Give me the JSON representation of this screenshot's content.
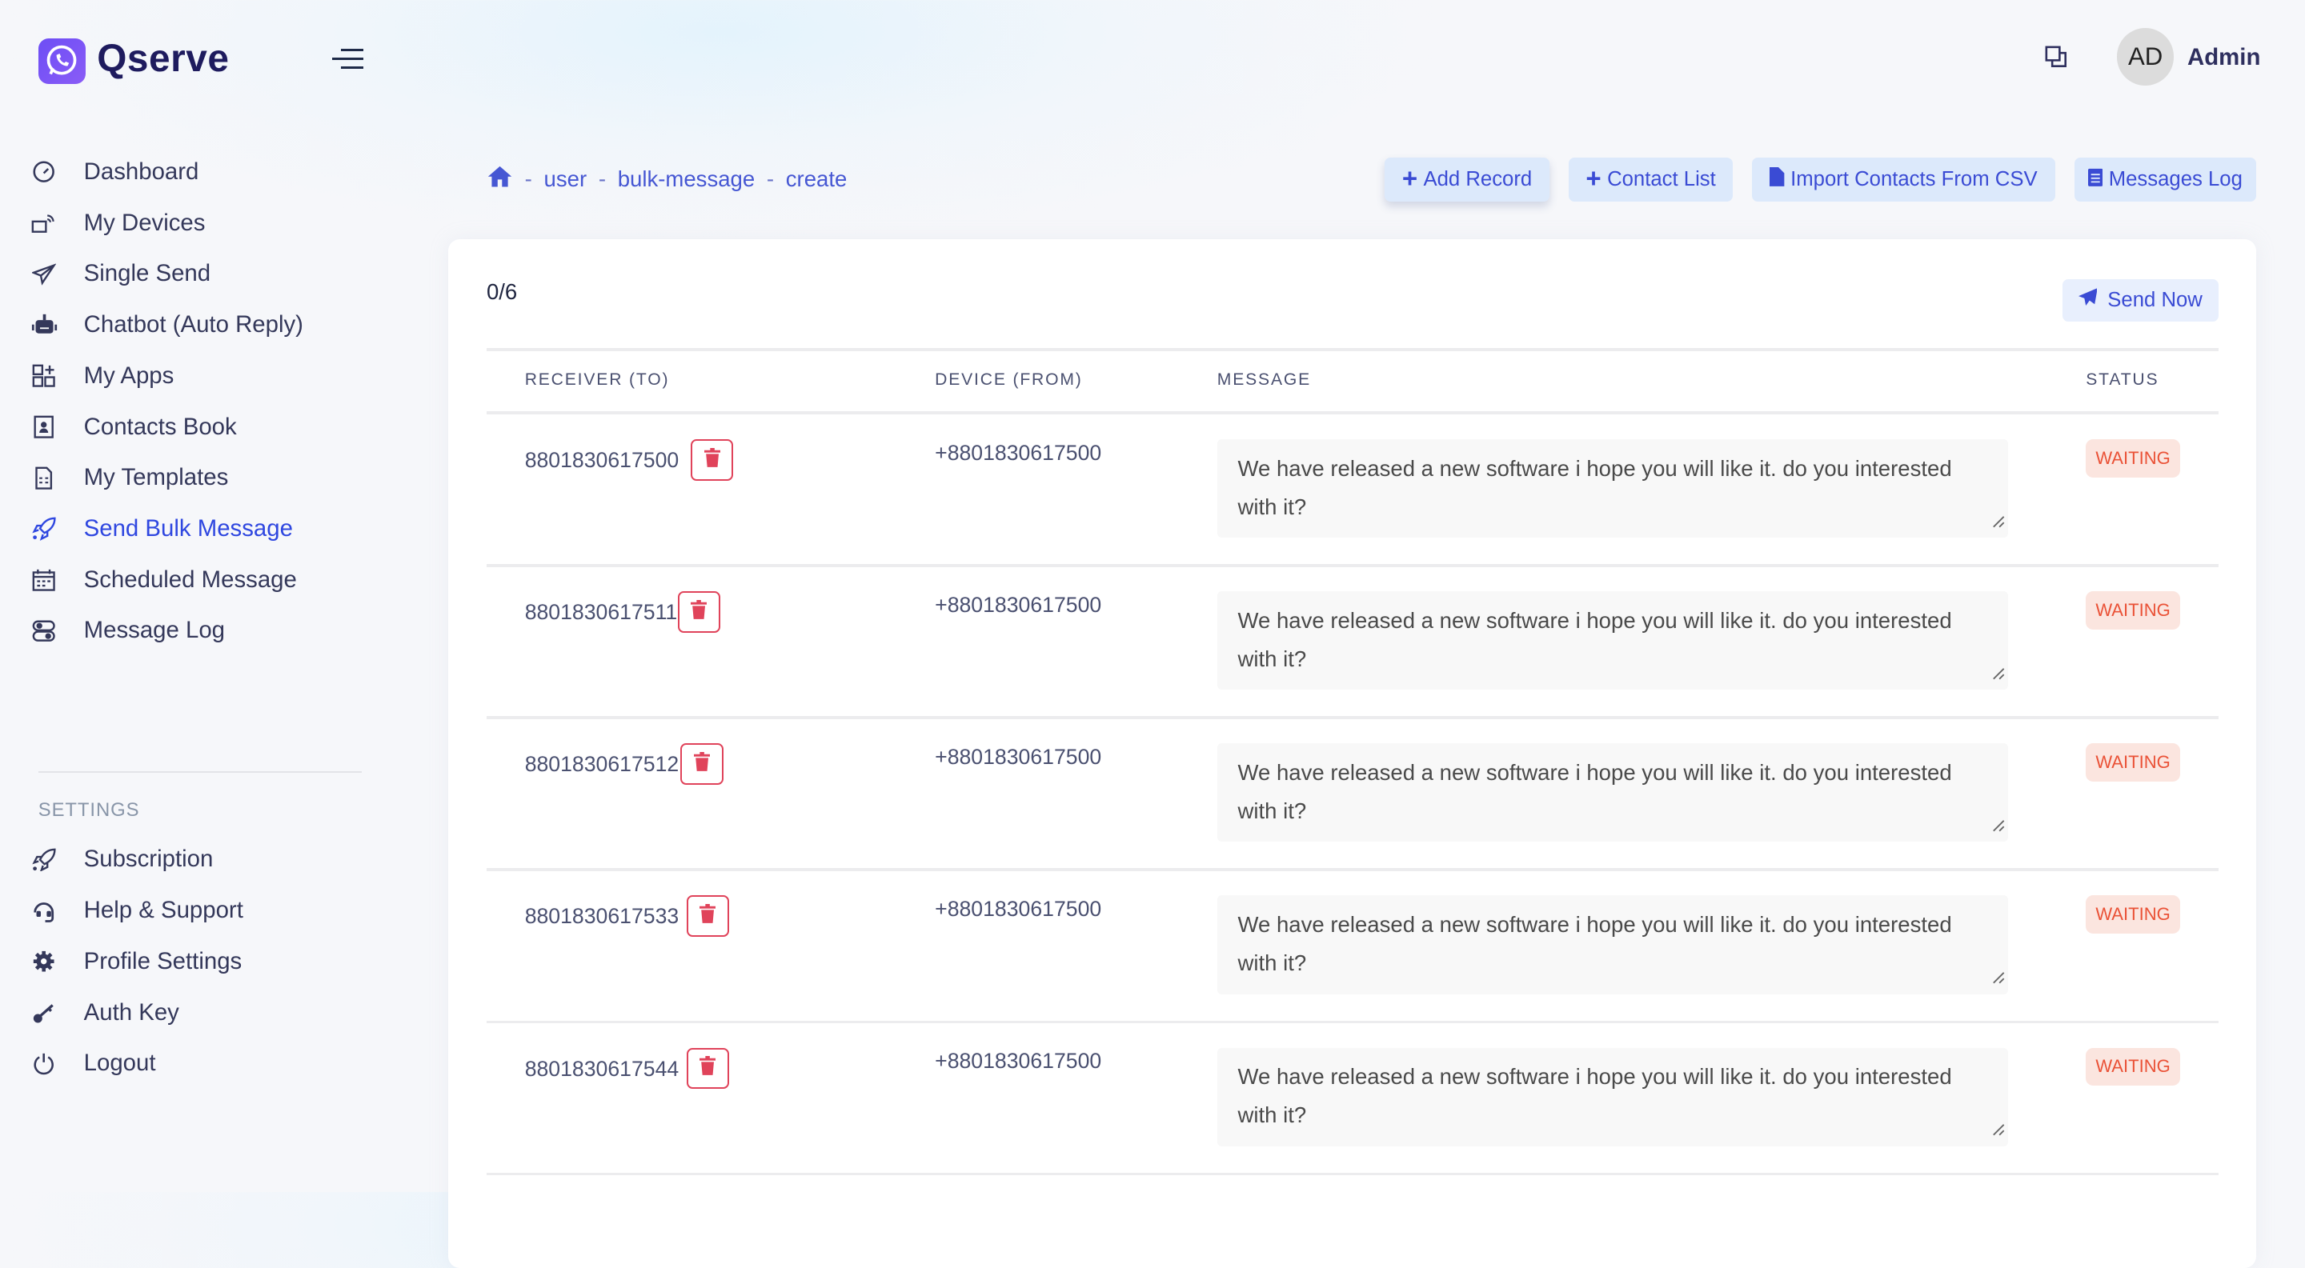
{
  "app": {
    "name": "Qserve",
    "accent": "#2f47e0"
  },
  "sidebar": {
    "items": [
      {
        "label": "Dashboard",
        "icon": "gauge-icon"
      },
      {
        "label": "My Devices",
        "icon": "device-icon"
      },
      {
        "label": "Single Send",
        "icon": "paper-plane-icon"
      },
      {
        "label": "Chatbot (Auto Reply)",
        "icon": "robot-icon"
      },
      {
        "label": "My Apps",
        "icon": "apps-icon"
      },
      {
        "label": "Contacts Book",
        "icon": "contact-book-icon"
      },
      {
        "label": "My Templates",
        "icon": "template-icon"
      },
      {
        "label": "Send Bulk Message",
        "icon": "rocket-icon",
        "active": true
      },
      {
        "label": "Scheduled Message",
        "icon": "calendar-icon"
      },
      {
        "label": "Message Log",
        "icon": "toggle-icon"
      }
    ],
    "settings_heading": "SETTINGS",
    "settings_items": [
      {
        "label": "Subscription",
        "icon": "rocket-icon"
      },
      {
        "label": "Help & Support",
        "icon": "headset-icon"
      },
      {
        "label": "Profile Settings",
        "icon": "gear-icon"
      },
      {
        "label": "Auth Key",
        "icon": "key-icon"
      },
      {
        "label": "Logout",
        "icon": "power-icon"
      }
    ]
  },
  "header": {
    "avatar_initials": "AD",
    "user_name": "Admin"
  },
  "breadcrumb": [
    "user",
    "bulk-message",
    "create"
  ],
  "breadcrumb_sep": "-",
  "toolbar": {
    "add_record": "Add Record",
    "contact_list": "Contact List",
    "import_csv": "Import Contacts From CSV",
    "messages_log": "Messages Log"
  },
  "main": {
    "progress": "0/6",
    "send_now": "Send Now",
    "columns": [
      "RECEIVER (TO)",
      "DEVICE (FROM)",
      "MESSAGE",
      "STATUS"
    ],
    "rows": [
      {
        "receiver": "8801830617500",
        "device": "+8801830617500",
        "message": "We have released a new software i hope you will like it. do you interested with it?",
        "status": "WAITING"
      },
      {
        "receiver": "8801830617511",
        "device": "+8801830617500",
        "message": "We have released a new software i hope you will like it. do you interested with it?",
        "status": "WAITING"
      },
      {
        "receiver": "8801830617512",
        "device": "+8801830617500",
        "message": "We have released a new software i hope you will like it. do you interested with it?",
        "status": "WAITING"
      },
      {
        "receiver": "8801830617533",
        "device": "+8801830617500",
        "message": "We have released a new software i hope you will like it. do you interested with it?",
        "status": "WAITING"
      },
      {
        "receiver": "8801830617544",
        "device": "+8801830617500",
        "message": "We have released a new software i hope you will like it. do you interested with it?",
        "status": "WAITING"
      }
    ],
    "status_colors": {
      "waiting_bg": "#fbe5df",
      "waiting_text": "#ea5237"
    },
    "delete_color": "#e0435a"
  }
}
